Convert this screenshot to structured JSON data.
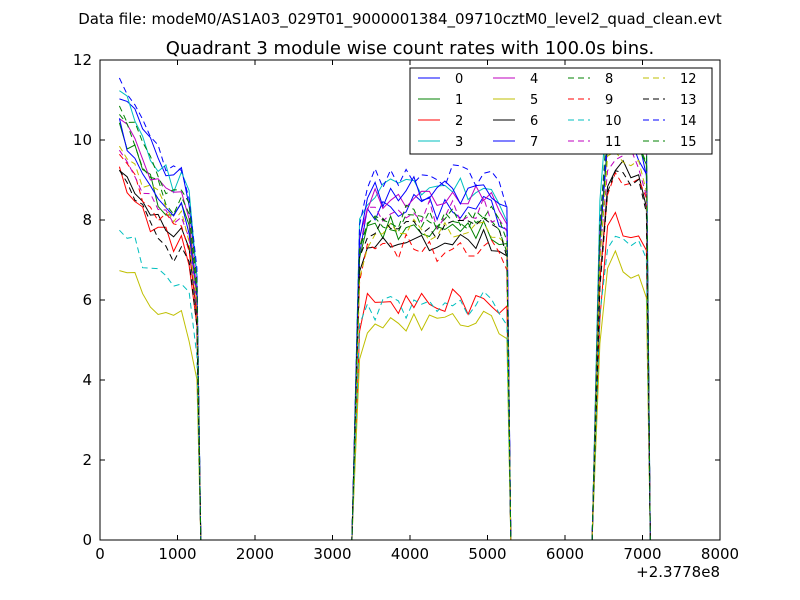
{
  "suptitle": "Data file: modeM0/AS1A03_029T01_9000001384_09710cztM0_level2_quad_clean.evt",
  "chart_data": {
    "type": "line",
    "title": "Quadrant 3 module wise count rates with 100.0s bins.",
    "xlabel": "",
    "ylabel": "",
    "x_offset_label": "+2.3778e8",
    "xlim": [
      0,
      8000
    ],
    "ylim": [
      0,
      12
    ],
    "xticks": [
      "0",
      "1000",
      "2000",
      "3000",
      "4000",
      "5000",
      "6000",
      "7000",
      "8000"
    ],
    "yticks": [
      "0",
      "2",
      "4",
      "6",
      "8",
      "10",
      "12"
    ],
    "legend_position": "top-right",
    "legend_columns": 4,
    "segments": [
      {
        "x0": 250,
        "x1": 1250,
        "shape": [
          1.0,
          0.97,
          0.94,
          0.9,
          0.87,
          0.84,
          0.82,
          0.8,
          0.8,
          0.76,
          0.6
        ]
      },
      {
        "x0": 3350,
        "x1": 5250,
        "shape": [
          0.88,
          0.98,
          1.0,
          0.99,
          1.0,
          0.98,
          1.0,
          1.01,
          0.99,
          1.0,
          0.98,
          1.0,
          1.01,
          1.0,
          0.99,
          1.0,
          1.02,
          1.0,
          0.97,
          0.93
        ]
      },
      {
        "x0": 6450,
        "x1": 7050,
        "shape": [
          0.72,
          0.95,
          1.0,
          0.98,
          0.97,
          0.96,
          0.9
        ]
      }
    ],
    "series": [
      {
        "name": "0",
        "color": "#0000ff",
        "dash": false,
        "levels": [
          11.3,
          8.3,
          10.3
        ]
      },
      {
        "name": "1",
        "color": "#008000",
        "dash": false,
        "levels": [
          10.2,
          7.8,
          10.5
        ]
      },
      {
        "name": "2",
        "color": "#ff0000",
        "dash": false,
        "levels": [
          9.2,
          6.0,
          8.0
        ]
      },
      {
        "name": "3",
        "color": "#00bfbf",
        "dash": false,
        "levels": [
          11.2,
          8.8,
          11.5
        ]
      },
      {
        "name": "4",
        "color": "#bf00bf",
        "dash": false,
        "levels": [
          10.6,
          8.6,
          10.6
        ]
      },
      {
        "name": "5",
        "color": "#bfbf00",
        "dash": false,
        "levels": [
          6.9,
          5.4,
          7.0
        ]
      },
      {
        "name": "6",
        "color": "#000000",
        "dash": false,
        "levels": [
          9.5,
          7.5,
          9.4
        ]
      },
      {
        "name": "7",
        "color": "#0000ff",
        "dash": false,
        "levels": [
          10.3,
          8.7,
          10.2
        ]
      },
      {
        "name": "8",
        "color": "#008000",
        "dash": true,
        "levels": [
          10.5,
          8.0,
          10.4
        ]
      },
      {
        "name": "9",
        "color": "#ff0000",
        "dash": true,
        "levels": [
          9.6,
          7.4,
          9.3
        ]
      },
      {
        "name": "10",
        "color": "#00bfbf",
        "dash": true,
        "levels": [
          7.8,
          5.8,
          7.5
        ]
      },
      {
        "name": "11",
        "color": "#bf00bf",
        "dash": true,
        "levels": [
          9.9,
          8.2,
          9.8
        ]
      },
      {
        "name": "12",
        "color": "#bfbf00",
        "dash": true,
        "levels": [
          10.1,
          7.7,
          9.8
        ]
      },
      {
        "name": "13",
        "color": "#000000",
        "dash": true,
        "levels": [
          9.0,
          7.9,
          9.1
        ]
      },
      {
        "name": "14",
        "color": "#0000ff",
        "dash": true,
        "levels": [
          11.4,
          9.1,
          10.8
        ]
      },
      {
        "name": "15",
        "color": "#008000",
        "dash": true,
        "levels": [
          10.8,
          8.1,
          10.9
        ]
      }
    ]
  }
}
